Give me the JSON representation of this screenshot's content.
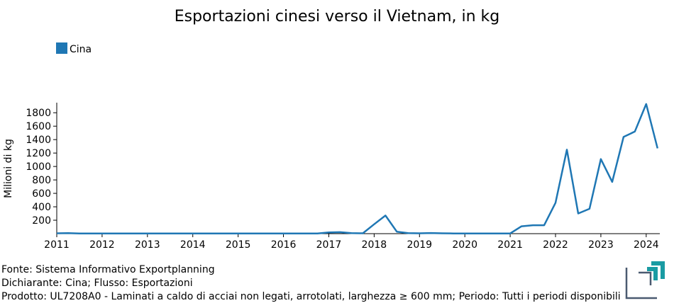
{
  "chart_data": {
    "type": "line",
    "title": "Esportazioni cinesi verso il Vietnam, in kg",
    "xlabel": "",
    "ylabel": "Milioni di kg",
    "xlim": [
      2011,
      2024.3
    ],
    "ylim": [
      0,
      1950
    ],
    "x_ticks": [
      2011,
      2012,
      2013,
      2014,
      2015,
      2016,
      2017,
      2018,
      2019,
      2020,
      2021,
      2022,
      2023,
      2024
    ],
    "y_ticks": [
      200,
      400,
      600,
      800,
      1000,
      1200,
      1400,
      1600,
      1800
    ],
    "grid": false,
    "legend_position": "top-left",
    "series": [
      {
        "name": "Cina",
        "color": "#1f77b4",
        "x": [
          2011,
          2011.25,
          2011.5,
          2011.75,
          2012,
          2012.5,
          2013,
          2013.5,
          2014,
          2014.5,
          2015,
          2015.5,
          2016,
          2016.5,
          2016.75,
          2017,
          2017.25,
          2017.5,
          2017.75,
          2018,
          2018.25,
          2018.5,
          2018.75,
          2019,
          2019.25,
          2019.5,
          2019.75,
          2020,
          2020.5,
          2021,
          2021.25,
          2021.5,
          2021.75,
          2022,
          2022.25,
          2022.5,
          2022.75,
          2023,
          2023.25,
          2023.5,
          2023.75,
          2024,
          2024.25
        ],
        "values": [
          5,
          8,
          3,
          2,
          2,
          2,
          2,
          2,
          2,
          2,
          2,
          2,
          2,
          2,
          3,
          18,
          22,
          8,
          5,
          140,
          270,
          30,
          8,
          5,
          10,
          5,
          3,
          3,
          3,
          3,
          110,
          125,
          125,
          460,
          1250,
          300,
          370,
          1110,
          770,
          1440,
          1520,
          1930,
          1270
        ]
      }
    ]
  },
  "footer": {
    "source": "Fonte: Sistema Informativo Exportplanning",
    "declarant": "Dichiarante: Cina; Flusso: Esportazioni",
    "product": "Prodotto: UL7208A0 - Laminati a caldo di acciai non legati, arrotolati, larghezza ≥ 600 mm; Periodo: Tutti i periodi disponibili"
  },
  "logo": {
    "name": "exportplanning-logo",
    "colors": [
      "#1a9ba3",
      "#4a5a70"
    ]
  }
}
